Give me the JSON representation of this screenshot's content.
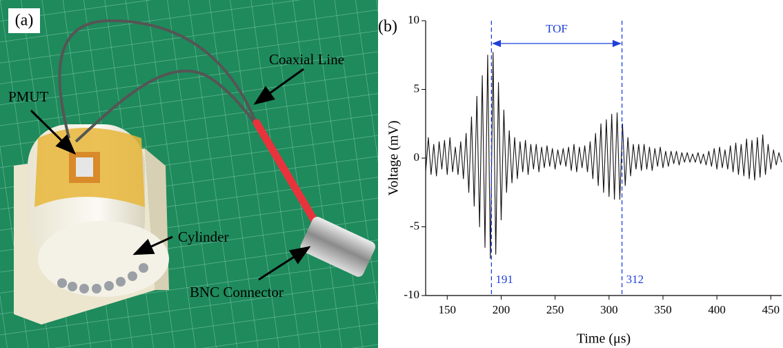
{
  "photo": {
    "label": "(a)",
    "callouts": [
      "Coaxial Line",
      "PMUT",
      "Cylinder",
      "BNC Connector"
    ]
  },
  "chart_data": {
    "type": "line",
    "panel_label": "(b)",
    "xlabel": "Time (μs)",
    "ylabel": "Voltage (mV)",
    "xlim": [
      130,
      460
    ],
    "ylim": [
      -10,
      10
    ],
    "xticks": [
      150,
      200,
      250,
      300,
      350,
      400,
      450
    ],
    "yticks": [
      -10,
      -5,
      0,
      5,
      10
    ],
    "markers": [
      191,
      312
    ],
    "marker_color": "#1f3fdc",
    "annotation": "TOF",
    "x": [
      130,
      132.5,
      135,
      137.5,
      140,
      142.5,
      145,
      147.5,
      150,
      152.5,
      155,
      157.5,
      160,
      162.5,
      165,
      167.5,
      170,
      172.5,
      175,
      177.5,
      180,
      182.5,
      185,
      187.5,
      190,
      192.5,
      195,
      197.5,
      200,
      202.5,
      205,
      207.5,
      210,
      212.5,
      215,
      217.5,
      220,
      222.5,
      225,
      227.5,
      230,
      232.5,
      235,
      237.5,
      240,
      242.5,
      245,
      247.5,
      250,
      252.5,
      255,
      257.5,
      260,
      262.5,
      265,
      267.5,
      270,
      272.5,
      275,
      277.5,
      280,
      282.5,
      285,
      287.5,
      290,
      292.5,
      295,
      297.5,
      300,
      302.5,
      305,
      307.5,
      310,
      312.5,
      315,
      317.5,
      320,
      322.5,
      325,
      327.5,
      330,
      332.5,
      335,
      337.5,
      340,
      342.5,
      345,
      347.5,
      350,
      352.5,
      355,
      357.5,
      360,
      362.5,
      365,
      367.5,
      370,
      372.5,
      375,
      377.5,
      380,
      382.5,
      385,
      387.5,
      390,
      392.5,
      395,
      397.5,
      400,
      402.5,
      405,
      407.5,
      410,
      412.5,
      415,
      417.5,
      420,
      422.5,
      425,
      427.5,
      430,
      432.5,
      435,
      437.5,
      440,
      442.5,
      445,
      447.5,
      450,
      452.5,
      455,
      457.5,
      460
    ],
    "series": [
      {
        "color": "#111111",
        "values": [
          -1.0,
          1.5,
          -1.2,
          1.0,
          -1.3,
          1.2,
          -0.8,
          1.3,
          -1.2,
          1.5,
          -1.0,
          0.8,
          -1.2,
          1.2,
          -1.5,
          1.8,
          -2.5,
          3.0,
          -3.5,
          4.5,
          -5.0,
          6.0,
          -6.5,
          7.5,
          -7.3,
          7.7,
          -7.0,
          5.5,
          -4.5,
          3.5,
          -2.5,
          2.0,
          -1.8,
          1.5,
          -1.5,
          1.2,
          -1.0,
          1.3,
          -1.2,
          1.0,
          -0.8,
          1.0,
          -1.0,
          0.8,
          -0.7,
          0.9,
          -0.6,
          0.7,
          -0.8,
          0.6,
          -0.5,
          0.7,
          -0.6,
          0.8,
          -0.9,
          1.0,
          -1.0,
          0.8,
          -0.7,
          0.9,
          -1.0,
          1.2,
          -1.5,
          1.8,
          -2.0,
          2.5,
          -2.5,
          2.8,
          -2.8,
          3.2,
          -3.0,
          3.3,
          -3.0,
          2.5,
          -2.0,
          1.5,
          -1.3,
          1.0,
          -0.8,
          1.0,
          -0.9,
          1.0,
          -0.8,
          0.8,
          -0.9,
          0.7,
          -0.6,
          0.8,
          -0.7,
          0.5,
          -0.6,
          0.5,
          -0.4,
          0.5,
          -0.5,
          0.4,
          -0.3,
          0.4,
          -0.3,
          0.3,
          -0.3,
          0.4,
          -0.4,
          0.3,
          -0.5,
          0.5,
          -0.6,
          0.7,
          -0.8,
          0.8,
          -0.7,
          0.6,
          -0.8,
          0.9,
          -1.0,
          1.1,
          -1.2,
          1.0,
          -1.3,
          1.4,
          -1.5,
          1.3,
          -1.6,
          1.5,
          -1.4,
          1.7,
          -1.2,
          1.0,
          -0.8,
          0.6,
          -0.5,
          0.4,
          -0.3
        ]
      }
    ]
  }
}
